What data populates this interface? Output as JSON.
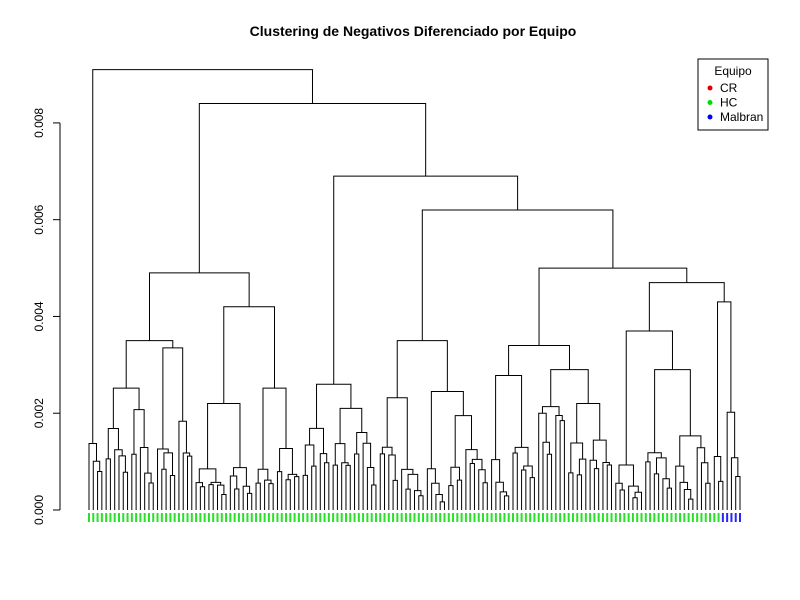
{
  "chart_data": {
    "type": "dendrogram",
    "title": "Clustering de Negativos Diferenciado por Equipo",
    "xlabel": "",
    "ylabel": "",
    "ylim": [
      0,
      0.0093
    ],
    "yticks": [
      {
        "value": 0.0,
        "label": "0.000"
      },
      {
        "value": 0.002,
        "label": "0.002"
      },
      {
        "value": 0.004,
        "label": "0.004"
      },
      {
        "value": 0.006,
        "label": "0.006"
      },
      {
        "value": 0.008,
        "label": "0.008"
      }
    ],
    "grid": false,
    "legend": {
      "title": "Equipo",
      "position": "top-right",
      "entries": [
        {
          "label": "CR",
          "color": "#e00000"
        },
        {
          "label": "HC",
          "color": "#00dd00"
        },
        {
          "label": "Malbran",
          "color": "#0000ff"
        }
      ]
    },
    "leaf_groups": [
      {
        "equipo": "HC",
        "count": 147,
        "color": "#00dd00"
      },
      {
        "equipo": "Malbran",
        "count": 5,
        "color": "#0000ff"
      }
    ],
    "merge_heights": {
      "root": 0.0091,
      "level2": 0.0084,
      "level3": 0.0069,
      "level4": 0.0062,
      "level5": 0.005,
      "level6": 0.0047,
      "left_group": 0.0049,
      "left_sub_a": 0.0035,
      "left_sub_b": 0.0042
    }
  }
}
